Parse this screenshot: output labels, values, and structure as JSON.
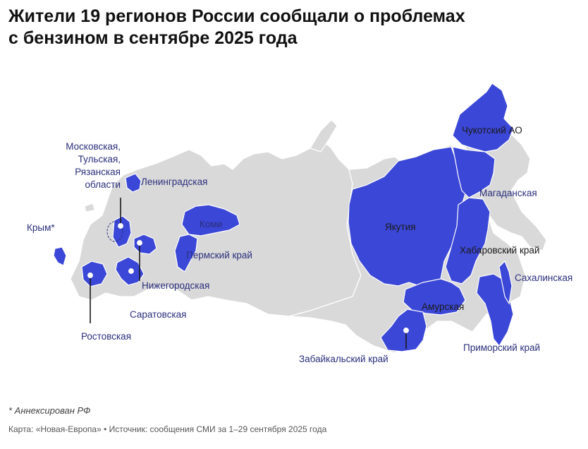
{
  "title": {
    "line1": "Жители 19 регионов России сообщали о проблемах",
    "line2": "с бензином в сентябре 2025 года"
  },
  "colors": {
    "highlight": "#3b47d6",
    "base": "#d9d9d9",
    "border": "#ffffff",
    "label": "#2b2f7c"
  },
  "regions": {
    "moscow_group": [
      "Московская,",
      "Тульская,",
      "Рязанская",
      "области"
    ],
    "leningrad": "Ленинградская",
    "komi": "Коми",
    "perm": "Пермский край",
    "nizhny": "Нижегородская",
    "saratov": "Саратовская",
    "rostov": "Ростовская",
    "crimea": "Крым*",
    "yakutia": "Якутия",
    "chukotka": "Чукотский АО",
    "magadan": "Магаданская",
    "khabarovsk": "Хабаровский край",
    "sakhalin": "Сахалинская",
    "amur": "Амурская",
    "primorye": "Приморский край",
    "zabaykalsky": "Забайкальский край"
  },
  "footnote": "* Аннексирован РФ",
  "source": "Карта: «Новая-Европа» • Источник: сообщения СМИ за 1–29 сентября 2025 года"
}
